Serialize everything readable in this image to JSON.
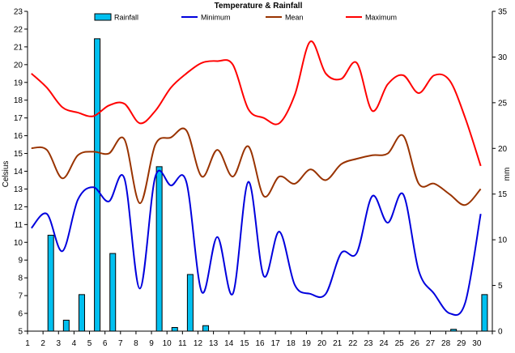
{
  "chart_data": {
    "type": "bar+line",
    "title": "Temperature & Rainfall",
    "ylabel_left": "Celsius",
    "ylabel_right": "mm",
    "ylim_left": [
      5,
      23
    ],
    "ylim_right": [
      0,
      35
    ],
    "yticks_left": [
      "5",
      "6",
      "7",
      "8",
      "9",
      "10",
      "11",
      "12",
      "13",
      "14",
      "15",
      "16",
      "17",
      "18",
      "19",
      "20",
      "21",
      "22",
      "23"
    ],
    "yticks_right": [
      "0",
      "5",
      "10",
      "15",
      "20",
      "25",
      "30",
      "35"
    ],
    "categories": [
      "1",
      "2",
      "3",
      "4",
      "5",
      "6",
      "7",
      "8",
      "9",
      "10",
      "11",
      "12",
      "13",
      "14",
      "15",
      "16",
      "17",
      "18",
      "19",
      "20",
      "21",
      "22",
      "23",
      "24",
      "25",
      "26",
      "27",
      "28",
      "29",
      "30"
    ],
    "grid": false,
    "legend_position": "top",
    "rainfall": {
      "name": "Rainfall",
      "axis": "right",
      "color": "#00c0f0",
      "values": [
        0,
        10.5,
        1.2,
        4,
        32,
        8.5,
        0,
        0,
        18,
        0.4,
        6.2,
        0.6,
        0,
        0,
        0,
        0,
        0,
        0,
        0,
        0,
        0,
        0,
        0,
        0,
        0,
        0,
        0,
        0.2,
        0,
        4
      ]
    },
    "series": [
      {
        "name": "Minimum",
        "color": "#0000dd",
        "values": [
          10.8,
          11.6,
          9.5,
          12.4,
          13.1,
          12.3,
          13.6,
          7.4,
          13.7,
          13.2,
          13.4,
          7.2,
          10.3,
          7.1,
          13.4,
          8.1,
          10.6,
          7.6,
          7.1,
          7.1,
          9.4,
          9.4,
          12.6,
          11.1,
          12.7,
          8.4,
          7.1,
          6.0,
          6.6,
          11.6
        ]
      },
      {
        "name": "Mean",
        "color": "#993300",
        "values": [
          15.3,
          15.2,
          13.6,
          14.9,
          15.1,
          15.0,
          15.8,
          12.2,
          15.5,
          15.9,
          16.3,
          13.7,
          15.2,
          13.7,
          15.4,
          12.6,
          13.7,
          13.3,
          14.1,
          13.5,
          14.4,
          14.7,
          14.9,
          15.0,
          16.0,
          13.3,
          13.3,
          12.7,
          12.1,
          13.0
        ]
      },
      {
        "name": "Maximum",
        "color": "#ff0000",
        "values": [
          19.5,
          18.7,
          17.6,
          17.3,
          17.1,
          17.7,
          17.8,
          16.7,
          17.4,
          18.7,
          19.5,
          20.1,
          20.2,
          20.0,
          17.5,
          17.0,
          16.7,
          18.3,
          21.3,
          19.5,
          19.2,
          20.1,
          17.4,
          18.9,
          19.4,
          18.4,
          19.4,
          19.1,
          17.0,
          14.3
        ]
      }
    ]
  }
}
